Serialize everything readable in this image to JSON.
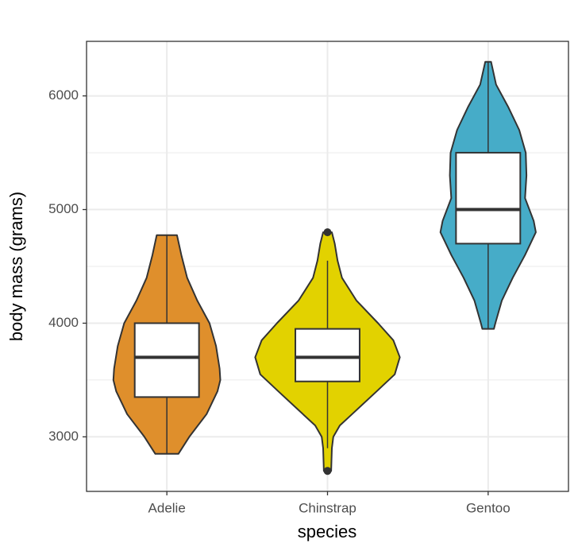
{
  "chart_data": {
    "type": "violin-box",
    "x_label": "species",
    "y_label": "body mass (grams)",
    "categories": [
      "Adelie",
      "Chinstrap",
      "Gentoo"
    ],
    "ylim": [
      2520,
      6480
    ],
    "yticks": [
      3000,
      4000,
      5000,
      6000
    ],
    "yminor": [
      3500,
      4500,
      5500
    ],
    "grid": true,
    "violin_width": 0.9,
    "box_width": 0.4,
    "series": [
      {
        "color": "#df8f2c",
        "violin": {
          "y": [
            4775,
            4600,
            4400,
            4200,
            4000,
            3800,
            3600,
            3500,
            3400,
            3200,
            3000,
            2850
          ],
          "width": [
            0.14,
            0.2,
            0.28,
            0.42,
            0.59,
            0.68,
            0.73,
            0.74,
            0.7,
            0.55,
            0.31,
            0.16
          ]
        },
        "box": {
          "whisker_low": 2850,
          "q1": 3350,
          "median": 3700,
          "q3": 4000,
          "whisker_high": 4775
        },
        "outliers": []
      },
      {
        "color": "#e2d200",
        "violin": {
          "y": [
            4800,
            4700,
            4550,
            4400,
            4200,
            4000,
            3850,
            3700,
            3550,
            3400,
            3200,
            3100,
            3000,
            2900,
            2700
          ],
          "width": [
            0.06,
            0.1,
            0.14,
            0.2,
            0.4,
            0.7,
            0.91,
            1.0,
            0.93,
            0.68,
            0.34,
            0.17,
            0.08,
            0.06,
            0.05
          ]
        },
        "box": {
          "whisker_low": 2900,
          "q1": 3487.5,
          "median": 3700,
          "q3": 3950,
          "whisker_high": 4550
        },
        "outliers": [
          2700,
          4800
        ]
      },
      {
        "color": "#46acc8",
        "violin": {
          "y": [
            6300,
            6100,
            5900,
            5700,
            5500,
            5300,
            5100,
            4900,
            4800,
            4600,
            4400,
            4200,
            4000,
            3950
          ],
          "width": [
            0.04,
            0.11,
            0.28,
            0.43,
            0.52,
            0.53,
            0.51,
            0.63,
            0.66,
            0.51,
            0.34,
            0.19,
            0.1,
            0.08
          ]
        },
        "box": {
          "whisker_low": 3950,
          "q1": 4700,
          "median": 5000,
          "q3": 5500,
          "whisker_high": 6300
        },
        "outliers": []
      }
    ]
  }
}
